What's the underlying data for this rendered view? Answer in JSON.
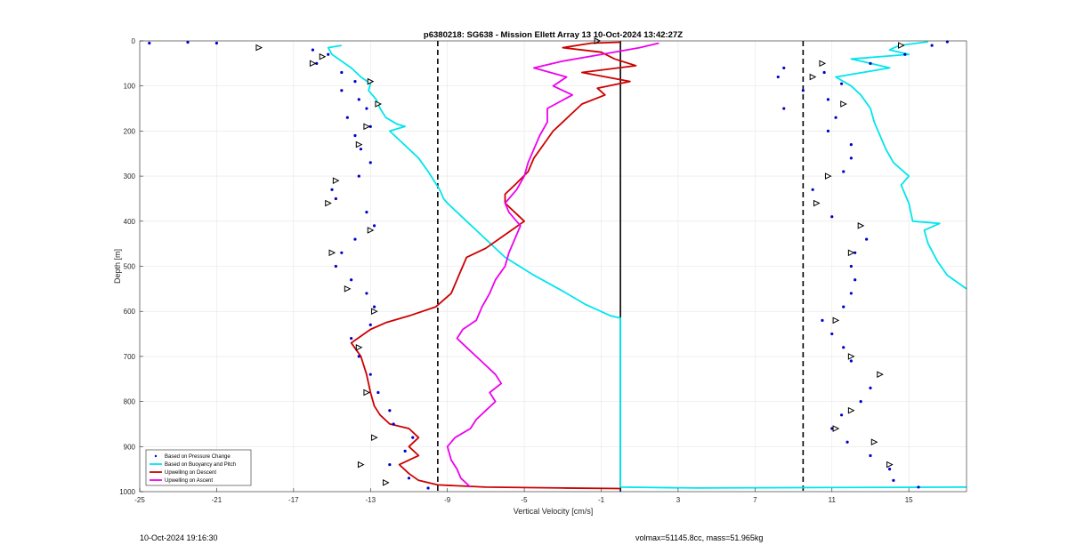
{
  "chart_data": {
    "type": "line",
    "title": "p6380218: SG638 - Mission Ellett Array 13 10-Oct-2024 13:42:27Z",
    "xlabel": "Vertical Velocity [cm/s]",
    "ylabel": "Depth [m]",
    "xlim": [
      -25,
      18
    ],
    "ylim": [
      0,
      1000
    ],
    "y_reversed": true,
    "grid": true,
    "x_ticks": [
      -25,
      -21,
      -17,
      -13,
      -9,
      -5,
      -1,
      3,
      7,
      11,
      15
    ],
    "y_ticks": [
      0,
      100,
      200,
      300,
      400,
      500,
      600,
      700,
      800,
      900,
      1000
    ],
    "reference_lines": [
      {
        "x": -9.5,
        "style": "dashed",
        "color": "#000000"
      },
      {
        "x": 0,
        "style": "solid",
        "color": "#000000"
      },
      {
        "x": 9.5,
        "style": "dashed",
        "color": "#000000"
      }
    ],
    "legend": {
      "placement": "bottom-left",
      "entries": [
        {
          "label": "Based on Pressure Change",
          "color": "#0000cc",
          "marker": "dot"
        },
        {
          "label": "Based on Buoyancy and Pitch",
          "color": "#00e5ee",
          "marker": "line"
        },
        {
          "label": "Upwelling on Descent",
          "color": "#cc0000",
          "marker": "line"
        },
        {
          "label": "Upwelling on Ascent",
          "color": "#ee00ee",
          "marker": "line"
        }
      ]
    },
    "series": [
      {
        "name": "Based on Buoyancy and Pitch",
        "color": "#00e5ee",
        "points": [
          [
            -14.5,
            10
          ],
          [
            -15.2,
            15
          ],
          [
            -15.0,
            30
          ],
          [
            -14.0,
            60
          ],
          [
            -13.5,
            80
          ],
          [
            -13.0,
            95
          ],
          [
            -13.1,
            110
          ],
          [
            -12.7,
            130
          ],
          [
            -12.5,
            150
          ],
          [
            -12.2,
            170
          ],
          [
            -11.6,
            185
          ],
          [
            -11.2,
            190
          ],
          [
            -12.0,
            200
          ],
          [
            -11.5,
            220
          ],
          [
            -10.5,
            260
          ],
          [
            -10.0,
            290
          ],
          [
            -9.4,
            330
          ],
          [
            -9.2,
            350
          ],
          [
            -9.0,
            360
          ],
          [
            -8.0,
            400
          ],
          [
            -7.0,
            440
          ],
          [
            -6.0,
            480
          ],
          [
            -4.5,
            520
          ],
          [
            -3.0,
            555
          ],
          [
            -1.8,
            585
          ],
          [
            -0.5,
            610
          ],
          [
            0,
            615
          ],
          [
            0,
            990
          ],
          [
            4,
            992
          ],
          [
            10,
            991
          ],
          [
            18,
            990
          ]
        ]
      },
      {
        "name": "Buoyancy and Pitch (ascent)",
        "color": "#00e5ee",
        "points": [
          [
            18,
            550
          ],
          [
            17,
            520
          ],
          [
            16.5,
            490
          ],
          [
            16,
            450
          ],
          [
            15.8,
            420
          ],
          [
            16.6,
            405
          ],
          [
            15.2,
            400
          ],
          [
            15.0,
            360
          ],
          [
            14.6,
            320
          ],
          [
            15.0,
            300
          ],
          [
            14.2,
            270
          ],
          [
            13.8,
            240
          ],
          [
            13.5,
            210
          ],
          [
            13.2,
            180
          ],
          [
            13.0,
            150
          ],
          [
            12.5,
            120
          ],
          [
            12.0,
            100
          ],
          [
            11.2,
            80
          ],
          [
            14.0,
            60
          ],
          [
            13.0,
            50
          ],
          [
            12.0,
            40
          ],
          [
            15.0,
            30
          ],
          [
            14.0,
            20
          ],
          [
            14.5,
            10
          ],
          [
            16.0,
            2
          ]
        ]
      },
      {
        "name": "Upwelling on Descent",
        "color": "#cc0000",
        "points": [
          [
            0,
            3
          ],
          [
            -1.5,
            5
          ],
          [
            -3,
            15
          ],
          [
            -1,
            25
          ],
          [
            -0.3,
            40
          ],
          [
            0.8,
            55
          ],
          [
            -2,
            70
          ],
          [
            0.5,
            90
          ],
          [
            -1.2,
            105
          ],
          [
            -0.8,
            120
          ],
          [
            -2.0,
            140
          ],
          [
            -2.5,
            160
          ],
          [
            -3.0,
            180
          ],
          [
            -3.5,
            200
          ],
          [
            -4.0,
            230
          ],
          [
            -4.5,
            260
          ],
          [
            -4.8,
            290
          ],
          [
            -5.5,
            320
          ],
          [
            -6.0,
            340
          ],
          [
            -6.0,
            360
          ],
          [
            -5.5,
            380
          ],
          [
            -5.0,
            400
          ],
          [
            -6.0,
            430
          ],
          [
            -7.0,
            460
          ],
          [
            -8.0,
            480
          ],
          [
            -8.4,
            520
          ],
          [
            -8.8,
            560
          ],
          [
            -9.6,
            590
          ],
          [
            -11.0,
            610
          ],
          [
            -12.2,
            625
          ],
          [
            -13.0,
            640
          ],
          [
            -14.0,
            670
          ],
          [
            -13.5,
            700
          ],
          [
            -13.2,
            740
          ],
          [
            -13.0,
            780
          ],
          [
            -12.8,
            810
          ],
          [
            -12.5,
            830
          ],
          [
            -12.0,
            850
          ],
          [
            -11.0,
            860
          ],
          [
            -10.5,
            880
          ],
          [
            -11.0,
            900
          ],
          [
            -10.5,
            920
          ],
          [
            -11.5,
            940
          ],
          [
            -11.0,
            960
          ],
          [
            -10.5,
            975
          ],
          [
            -9.5,
            985
          ],
          [
            -7.0,
            990
          ],
          [
            -3.0,
            992
          ],
          [
            0,
            993
          ]
        ]
      },
      {
        "name": "Upwelling on Ascent",
        "color": "#ee00ee",
        "points": [
          [
            -7.8,
            990
          ],
          [
            -8.3,
            970
          ],
          [
            -8.5,
            950
          ],
          [
            -8.8,
            930
          ],
          [
            -9.0,
            900
          ],
          [
            -8.6,
            880
          ],
          [
            -7.8,
            860
          ],
          [
            -7.5,
            840
          ],
          [
            -7.0,
            820
          ],
          [
            -6.5,
            800
          ],
          [
            -6.8,
            780
          ],
          [
            -6.2,
            760
          ],
          [
            -6.5,
            740
          ],
          [
            -7.0,
            720
          ],
          [
            -7.5,
            700
          ],
          [
            -8.0,
            680
          ],
          [
            -8.5,
            660
          ],
          [
            -8.2,
            640
          ],
          [
            -7.5,
            620
          ],
          [
            -7.2,
            590
          ],
          [
            -6.8,
            560
          ],
          [
            -6.5,
            530
          ],
          [
            -6.0,
            500
          ],
          [
            -5.8,
            470
          ],
          [
            -5.5,
            440
          ],
          [
            -5.2,
            410
          ],
          [
            -5.8,
            380
          ],
          [
            -6.0,
            360
          ],
          [
            -5.4,
            330
          ],
          [
            -5.0,
            300
          ],
          [
            -4.8,
            270
          ],
          [
            -4.5,
            240
          ],
          [
            -4.2,
            210
          ],
          [
            -3.8,
            180
          ],
          [
            -3.8,
            150
          ],
          [
            -2.5,
            120
          ],
          [
            -3.5,
            100
          ],
          [
            -2.8,
            80
          ],
          [
            -4.5,
            60
          ],
          [
            -3.0,
            45
          ],
          [
            -1.0,
            30
          ],
          [
            1.0,
            15
          ],
          [
            2.0,
            5
          ]
        ]
      }
    ],
    "scatter_series": [
      {
        "name": "Based on Pressure Change (descent)",
        "color": "#0000cc",
        "points": [
          [
            -24.5,
            5
          ],
          [
            -22.5,
            3
          ],
          [
            -21,
            5
          ],
          [
            -16,
            20
          ],
          [
            -15.2,
            30
          ],
          [
            -15.8,
            50
          ],
          [
            -14.5,
            70
          ],
          [
            -13.8,
            90
          ],
          [
            -14.5,
            110
          ],
          [
            -13.6,
            130
          ],
          [
            -13.2,
            150
          ],
          [
            -14.2,
            170
          ],
          [
            -13.0,
            190
          ],
          [
            -13.8,
            210
          ],
          [
            -13.5,
            240
          ],
          [
            -13.0,
            270
          ],
          [
            -13.6,
            300
          ],
          [
            -15.0,
            330
          ],
          [
            -14.8,
            350
          ],
          [
            -13.2,
            380
          ],
          [
            -12.8,
            410
          ],
          [
            -13.8,
            440
          ],
          [
            -14.5,
            470
          ],
          [
            -14.8,
            500
          ],
          [
            -14.0,
            530
          ],
          [
            -13.2,
            560
          ],
          [
            -12.8,
            590
          ],
          [
            -13.0,
            630
          ],
          [
            -14.0,
            660
          ],
          [
            -13.6,
            700
          ],
          [
            -13.0,
            740
          ],
          [
            -12.6,
            780
          ],
          [
            -12.0,
            820
          ],
          [
            -11.8,
            850
          ],
          [
            -10.8,
            880
          ],
          [
            -11.2,
            910
          ],
          [
            -12.0,
            940
          ],
          [
            -11.0,
            970
          ],
          [
            -10.0,
            992
          ]
        ]
      },
      {
        "name": "Based on Pressure Change (ascent)",
        "color": "#0000cc",
        "points": [
          [
            17.0,
            2
          ],
          [
            16.2,
            10
          ],
          [
            14.8,
            30
          ],
          [
            13.0,
            50
          ],
          [
            8.5,
            60
          ],
          [
            10.6,
            70
          ],
          [
            8.2,
            80
          ],
          [
            11.5,
            95
          ],
          [
            9.5,
            110
          ],
          [
            10.8,
            130
          ],
          [
            8.5,
            150
          ],
          [
            11.2,
            170
          ],
          [
            10.8,
            200
          ],
          [
            12.0,
            230
          ],
          [
            12.0,
            260
          ],
          [
            11.6,
            290
          ],
          [
            10.0,
            330
          ],
          [
            10.2,
            360
          ],
          [
            11.0,
            390
          ],
          [
            12.5,
            410
          ],
          [
            12.8,
            440
          ],
          [
            12.2,
            470
          ],
          [
            12.0,
            500
          ],
          [
            12.2,
            530
          ],
          [
            12.0,
            560
          ],
          [
            11.6,
            590
          ],
          [
            10.5,
            620
          ],
          [
            11.0,
            650
          ],
          [
            11.6,
            680
          ],
          [
            12.0,
            710
          ],
          [
            13.5,
            740
          ],
          [
            13.0,
            770
          ],
          [
            12.5,
            800
          ],
          [
            11.5,
            830
          ],
          [
            11.0,
            860
          ],
          [
            11.8,
            890
          ],
          [
            13.0,
            920
          ],
          [
            14.0,
            950
          ],
          [
            14.2,
            975
          ],
          [
            15.5,
            990
          ]
        ]
      }
    ],
    "marker_points": [
      [
        -18.8,
        15
      ],
      [
        -15.5,
        35
      ],
      [
        -16.0,
        50
      ],
      [
        -13.0,
        90
      ],
      [
        -12.6,
        140
      ],
      [
        -13.2,
        190
      ],
      [
        -13.6,
        230
      ],
      [
        -14.8,
        310
      ],
      [
        -15.2,
        360
      ],
      [
        -13.0,
        420
      ],
      [
        -15.0,
        470
      ],
      [
        -14.2,
        550
      ],
      [
        -12.8,
        600
      ],
      [
        -13.6,
        680
      ],
      [
        -13.2,
        780
      ],
      [
        -12.8,
        880
      ],
      [
        -13.5,
        940
      ],
      [
        -12.2,
        980
      ],
      [
        -1.2,
        0
      ],
      [
        14.6,
        10
      ],
      [
        10.5,
        50
      ],
      [
        10.0,
        80
      ],
      [
        11.6,
        140
      ],
      [
        10.8,
        300
      ],
      [
        10.2,
        360
      ],
      [
        12.5,
        410
      ],
      [
        12.0,
        470
      ],
      [
        11.2,
        620
      ],
      [
        12.0,
        700
      ],
      [
        13.5,
        740
      ],
      [
        12.0,
        820
      ],
      [
        11.2,
        860
      ],
      [
        13.2,
        890
      ],
      [
        14.0,
        940
      ]
    ]
  },
  "footer": {
    "left": "10-Oct-2024 19:16:30",
    "right": "volmax=51145.8cc, mass=51.965kg"
  }
}
